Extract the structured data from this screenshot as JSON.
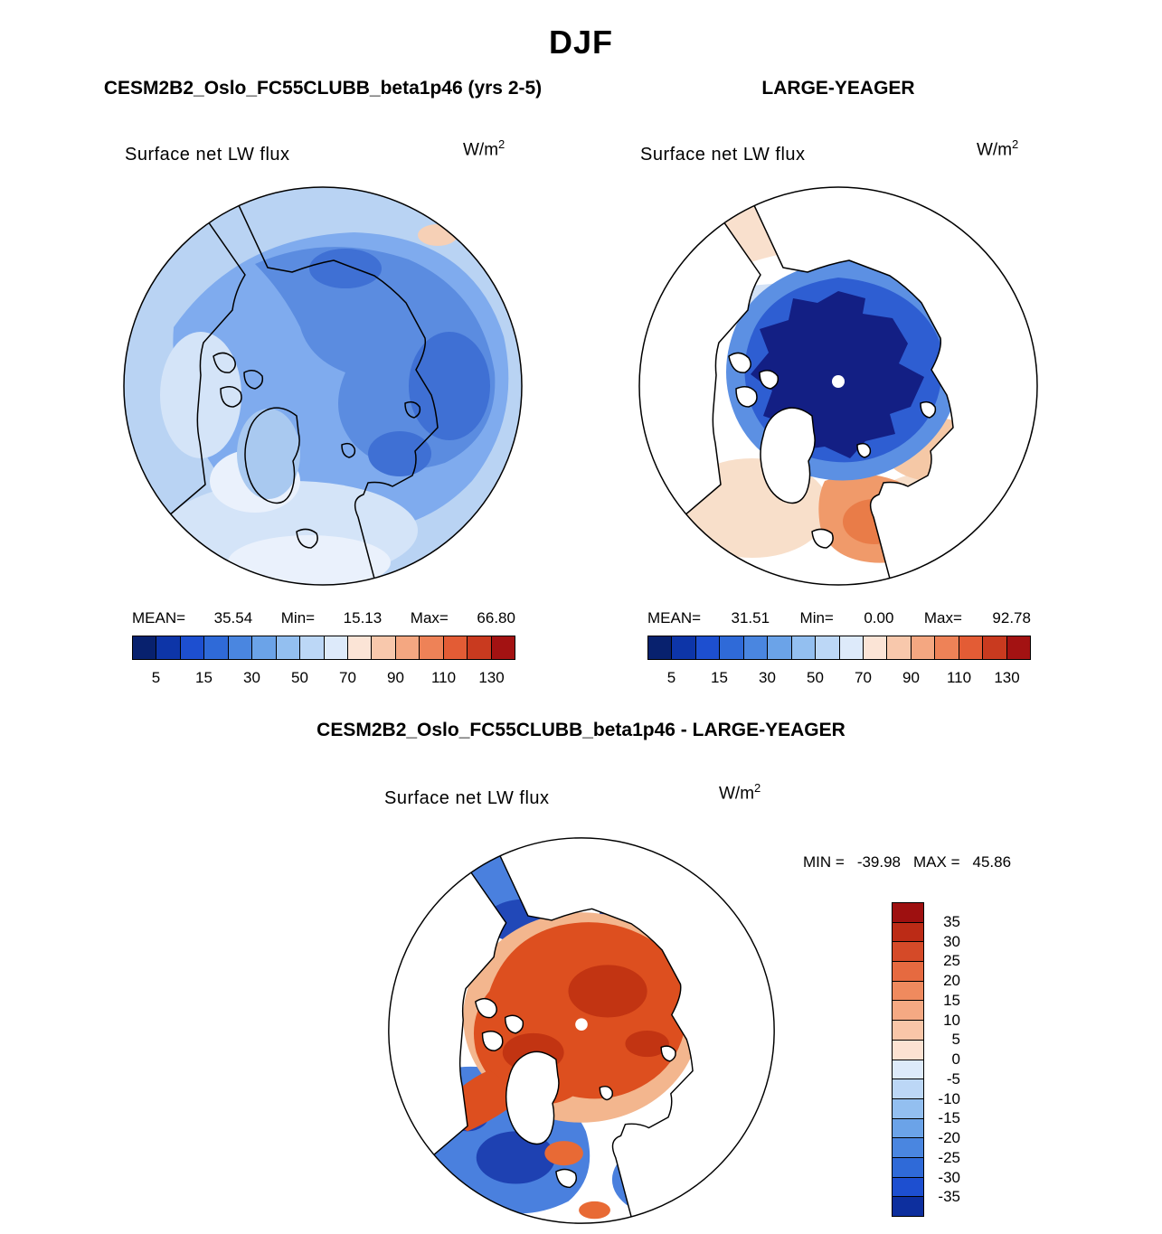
{
  "figure": {
    "title": "DJF"
  },
  "panels": {
    "left": {
      "title": "CESM2B2_Oslo_FC55CLUBB_beta1p46 (yrs 2-5)",
      "field_label": "Surface net LW flux",
      "units_base": "W/m",
      "units_exp": "2",
      "stats": {
        "mean_label": "MEAN=",
        "mean": "35.54",
        "min_label": "Min=",
        "min": "15.13",
        "max_label": "Max=",
        "max": "66.80"
      },
      "colorbar": {
        "ticks": [
          "5",
          "15",
          "30",
          "50",
          "70",
          "90",
          "110",
          "130"
        ],
        "colors": [
          "#08216e",
          "#0d35a8",
          "#1d4fd0",
          "#2f6ad8",
          "#4a86e0",
          "#6ba3e8",
          "#93bff0",
          "#bcd7f6",
          "#ddeafa",
          "#fbe4d6",
          "#f8c8ac",
          "#f4a781",
          "#ee8257",
          "#e35c35",
          "#c93a1f",
          "#a31212"
        ]
      }
    },
    "right": {
      "title": "LARGE-YEAGER",
      "field_label": "Surface net LW flux",
      "units_base": "W/m",
      "units_exp": "2",
      "stats": {
        "mean_label": "MEAN=",
        "mean": "31.51",
        "min_label": "Min=",
        "min": "0.00",
        "max_label": "Max=",
        "max": "92.78"
      },
      "colorbar": {
        "ticks": [
          "5",
          "15",
          "30",
          "50",
          "70",
          "90",
          "110",
          "130"
        ],
        "colors": [
          "#08216e",
          "#0d35a8",
          "#1d4fd0",
          "#2f6ad8",
          "#4a86e0",
          "#6ba3e8",
          "#93bff0",
          "#bcd7f6",
          "#ddeafa",
          "#fbe4d6",
          "#f8c8ac",
          "#f4a781",
          "#ee8257",
          "#e35c35",
          "#c93a1f",
          "#a31212"
        ]
      }
    },
    "diff": {
      "title": "CESM2B2_Oslo_FC55CLUBB_beta1p46 - LARGE-YEAGER",
      "field_label": "Surface net LW flux",
      "units_base": "W/m",
      "units_exp": "2",
      "stats": {
        "min_label": "MIN =",
        "min": "-39.98",
        "max_label": "MAX =",
        "max": "45.86"
      },
      "colorbar": {
        "labels": [
          "35",
          "30",
          "25",
          "20",
          "15",
          "10",
          "5",
          "0",
          "-5",
          "-10",
          "-15",
          "-20",
          "-25",
          "-30",
          "-35"
        ],
        "colors": [
          "#9e1010",
          "#bc2b16",
          "#d54a28",
          "#e66a40",
          "#ef8a5e",
          "#f5a983",
          "#f9c6a8",
          "#fce2d2",
          "#ddeafa",
          "#bcd7f6",
          "#93bff0",
          "#6ba3e8",
          "#4a86e0",
          "#2f6ad8",
          "#1d4fd0",
          "#0d2f9e"
        ]
      }
    }
  },
  "chart_data": [
    {
      "type": "heatmap",
      "subtype": "polar_stereographic_contour_map",
      "panel": "top-left",
      "season": "DJF",
      "title": "CESM2B2_Oslo_FC55CLUBB_beta1p46 (yrs 2-5)",
      "variable": "Surface net LW flux",
      "units": "W/m^2",
      "mean": 35.54,
      "min": 15.13,
      "max": 66.8,
      "contour_levels": [
        5,
        10,
        15,
        20,
        30,
        40,
        50,
        60,
        70,
        80,
        90,
        100,
        110,
        120,
        130
      ],
      "labeled_levels": [
        5,
        15,
        30,
        50,
        70,
        90,
        110,
        130
      ],
      "colormap": "blue_to_red_diverging",
      "legend": "horizontal_colorbar_bottom",
      "land_masked": false,
      "pole_marker": false
    },
    {
      "type": "heatmap",
      "subtype": "polar_stereographic_contour_map",
      "panel": "top-right",
      "season": "DJF",
      "title": "LARGE-YEAGER",
      "variable": "Surface net LW flux",
      "units": "W/m^2",
      "mean": 31.51,
      "min": 0.0,
      "max": 92.78,
      "contour_levels": [
        5,
        10,
        15,
        20,
        30,
        40,
        50,
        60,
        70,
        80,
        90,
        100,
        110,
        120,
        130
      ],
      "labeled_levels": [
        5,
        15,
        30,
        50,
        70,
        90,
        110,
        130
      ],
      "colormap": "blue_to_red_diverging",
      "legend": "horizontal_colorbar_bottom",
      "land_masked": true,
      "pole_marker": true
    },
    {
      "type": "heatmap",
      "subtype": "polar_stereographic_difference_map",
      "panel": "bottom",
      "season": "DJF",
      "title": "CESM2B2_Oslo_FC55CLUBB_beta1p46 - LARGE-YEAGER",
      "variable": "Surface net LW flux",
      "units": "W/m^2",
      "min": -39.98,
      "max": 45.86,
      "contour_levels": [
        -35,
        -30,
        -25,
        -20,
        -15,
        -10,
        -5,
        0,
        5,
        10,
        15,
        20,
        25,
        30,
        35
      ],
      "colormap": "red_positive_top_blue_negative_bottom",
      "legend": "vertical_colorbar_right",
      "land_masked": true,
      "pole_marker": true
    }
  ]
}
